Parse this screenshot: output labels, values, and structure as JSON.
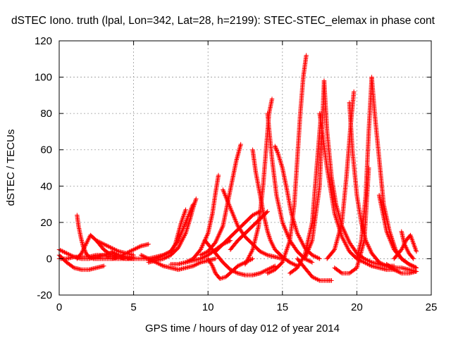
{
  "chart_data": {
    "type": "scatter",
    "title": "dSTEC Iono. truth (lpal, Lon=342, Lat=28, h=2199): STEC-STEC_elemax in phase cont",
    "xlabel": "GPS time / hours of day 012 of year 2014",
    "ylabel": "dSTEC  / TECUs",
    "xlim": [
      0,
      25
    ],
    "ylim": [
      -20,
      120
    ],
    "x_ticks": [
      0,
      5,
      10,
      15,
      20,
      25
    ],
    "y_ticks": [
      -20,
      0,
      20,
      40,
      60,
      80,
      100,
      120
    ],
    "grid": true,
    "legend": "none",
    "marker": "+",
    "color": "#ff0000",
    "series": [
      {
        "x": [
          0.0,
          0.5,
          1.0,
          1.5,
          2.0,
          2.5,
          3.0,
          3.5,
          4.0,
          4.5,
          5.0
        ],
        "y": [
          5,
          3,
          1,
          0,
          0,
          1,
          2,
          3,
          2,
          1,
          0
        ]
      },
      {
        "x": [
          0.0,
          0.5,
          1.0,
          1.5,
          2.0,
          2.5,
          3.0
        ],
        "y": [
          2,
          -2,
          -5,
          -6,
          -6,
          -5,
          -4
        ]
      },
      {
        "x": [
          0.0,
          0.5,
          1.0,
          1.5,
          2.0,
          2.5,
          3.0,
          3.5,
          4.0,
          4.5,
          5.0
        ],
        "y": [
          0,
          0,
          1,
          1,
          1,
          2,
          2,
          1,
          1,
          0,
          0
        ]
      },
      {
        "x": [
          1.2,
          1.3,
          1.45,
          1.6,
          1.8,
          2.0,
          2.3,
          2.6,
          3.0,
          3.5,
          4.0,
          4.5,
          5.0
        ],
        "y": [
          24,
          18,
          12,
          7,
          3,
          1,
          0,
          0,
          0,
          0,
          0,
          0,
          1
        ]
      },
      {
        "x": [
          1.2,
          1.5,
          1.8,
          2.1,
          2.5,
          3.0,
          3.5,
          4.0,
          4.5,
          5.0
        ],
        "y": [
          0,
          3,
          8,
          13,
          10,
          5,
          2,
          1,
          0,
          0
        ]
      },
      {
        "x": [
          2.5,
          3.0,
          3.5,
          4.0,
          4.5,
          5.0
        ],
        "y": [
          10,
          8,
          6,
          4,
          3,
          2
        ]
      },
      {
        "x": [
          3.5,
          4.0,
          4.5,
          5.0,
          5.5,
          6.0
        ],
        "y": [
          4,
          2,
          1,
          0,
          0,
          0
        ]
      },
      {
        "x": [
          3.5,
          4.0,
          4.5,
          5.0,
          5.5,
          6.0
        ],
        "y": [
          0,
          1,
          3,
          5,
          7,
          8
        ]
      },
      {
        "x": [
          5.5,
          6.0,
          6.5,
          7.0,
          7.5,
          8.0,
          8.5,
          9.0,
          9.5,
          10.0,
          10.5
        ],
        "y": [
          2,
          0,
          -2,
          -4,
          -5,
          -6,
          -5,
          -4,
          -2,
          -1,
          0
        ]
      },
      {
        "x": [
          6.0,
          6.5,
          7.0,
          7.5,
          7.8,
          8.0,
          8.2,
          8.5
        ],
        "y": [
          0,
          1,
          2,
          4,
          8,
          14,
          20,
          27
        ]
      },
      {
        "x": [
          6.0,
          6.5,
          7.0,
          7.5,
          8.0,
          8.3,
          8.6,
          9.0
        ],
        "y": [
          -1,
          0,
          2,
          4,
          10,
          16,
          22,
          30
        ]
      },
      {
        "x": [
          6.0,
          6.5,
          7.0,
          7.5,
          8.0,
          8.5,
          8.8,
          9.0,
          9.2
        ],
        "y": [
          -2,
          -1,
          0,
          2,
          6,
          14,
          22,
          28,
          33
        ]
      },
      {
        "x": [
          7.5,
          8.0,
          8.5,
          9.0,
          9.5,
          10.0,
          10.5,
          11.0,
          11.5
        ],
        "y": [
          -3,
          -3,
          -2,
          -1,
          0,
          2,
          5,
          8,
          10
        ]
      },
      {
        "x": [
          8.5,
          9.0,
          9.5,
          10.0,
          10.3,
          10.5,
          10.7
        ],
        "y": [
          -2,
          0,
          5,
          14,
          25,
          36,
          46
        ]
      },
      {
        "x": [
          9.5,
          10.0,
          10.5,
          11.0,
          11.3,
          11.6,
          11.9,
          12.2
        ],
        "y": [
          2,
          4,
          9,
          18,
          30,
          42,
          54,
          63
        ]
      },
      {
        "x": [
          9.8,
          10.2,
          10.6,
          11.0,
          11.5,
          12.0,
          12.5,
          13.0,
          13.5,
          14.0,
          14.5
        ],
        "y": [
          10,
          6,
          2,
          -2,
          -6,
          -8,
          -9,
          -9,
          -8,
          -6,
          -4
        ]
      },
      {
        "x": [
          10.0,
          10.3,
          10.5,
          10.8,
          11.2,
          11.6,
          12.0,
          12.5,
          13.0
        ],
        "y": [
          0,
          -4,
          -8,
          -11,
          -10,
          -7,
          -4,
          -2,
          0
        ]
      },
      {
        "x": [
          11.0,
          11.5,
          12.0,
          12.5,
          13.0,
          13.5,
          14.0,
          14.5,
          15.0
        ],
        "y": [
          38,
          28,
          18,
          12,
          8,
          4,
          2,
          1,
          0
        ]
      },
      {
        "x": [
          11.5,
          12.0,
          12.5,
          13.0,
          13.5,
          14.0
        ],
        "y": [
          5,
          10,
          14,
          18,
          22,
          26
        ]
      },
      {
        "x": [
          10.5,
          11.0,
          11.5,
          12.0,
          12.5,
          13.0,
          13.5
        ],
        "y": [
          4,
          8,
          12,
          16,
          20,
          24,
          26
        ]
      },
      {
        "x": [
          13.0,
          13.2,
          13.5,
          13.8,
          14.0,
          14.2,
          14.5,
          15.0,
          15.5,
          16.0
        ],
        "y": [
          60,
          48,
          35,
          22,
          15,
          10,
          5,
          1,
          -2,
          -4
        ]
      },
      {
        "x": [
          12.5,
          13.0,
          13.4,
          13.7,
          13.9,
          14.1,
          14.3
        ],
        "y": [
          -3,
          5,
          18,
          40,
          60,
          80,
          88
        ]
      },
      {
        "x": [
          14.0,
          14.3,
          14.6,
          15.0,
          15.5,
          16.0,
          16.5,
          17.0
        ],
        "y": [
          80,
          55,
          35,
          20,
          10,
          4,
          0,
          -2
        ]
      },
      {
        "x": [
          14.5,
          14.7,
          15.0,
          15.3,
          15.6,
          16.0,
          16.5,
          17.0,
          17.5
        ],
        "y": [
          62,
          58,
          50,
          38,
          25,
          14,
          6,
          2,
          0
        ]
      },
      {
        "x": [
          14.0,
          14.5,
          15.0,
          15.5,
          15.8,
          16.0,
          16.2,
          16.4,
          16.6
        ],
        "y": [
          -8,
          -6,
          -2,
          10,
          30,
          55,
          80,
          100,
          112
        ]
      },
      {
        "x": [
          16.5,
          17.0,
          17.5,
          17.8
        ],
        "y": [
          0,
          10,
          40,
          98
        ]
      },
      {
        "x": [
          17.8,
          18.0,
          18.3,
          18.6,
          19.0,
          19.5,
          20.0,
          20.5,
          21.0,
          21.5,
          22.0,
          22.5
        ],
        "y": [
          98,
          70,
          45,
          30,
          18,
          9,
          3,
          0,
          -2,
          -3,
          -4,
          -4
        ]
      },
      {
        "x": [
          15.5,
          16.0,
          16.5,
          17.0,
          17.3,
          17.6
        ],
        "y": [
          -8,
          -5,
          2,
          20,
          50,
          80
        ]
      },
      {
        "x": [
          17.5,
          18.0,
          18.5,
          19.0,
          19.5,
          20.0,
          20.5,
          21.0,
          21.5,
          22.0,
          22.5
        ],
        "y": [
          80,
          50,
          25,
          12,
          4,
          0,
          -2,
          -4,
          -5,
          -6,
          -6
        ]
      },
      {
        "x": [
          16.0,
          16.5,
          17.0,
          17.5,
          18.0,
          18.3
        ],
        "y": [
          0,
          -5,
          -10,
          -12,
          -12,
          -12
        ]
      },
      {
        "x": [
          18.0,
          18.5,
          19.0,
          19.3,
          19.6,
          19.8
        ],
        "y": [
          0,
          5,
          20,
          45,
          75,
          92
        ]
      },
      {
        "x": [
          19.5,
          19.7,
          20.0,
          20.3,
          20.6,
          21.0,
          21.5,
          22.0,
          22.5,
          23.0,
          23.5,
          24.0
        ],
        "y": [
          86,
          60,
          35,
          20,
          10,
          3,
          -2,
          -4,
          -5,
          -5,
          -6,
          -7
        ]
      },
      {
        "x": [
          20.0,
          20.3,
          20.6,
          20.8,
          21.0
        ],
        "y": [
          0,
          10,
          35,
          70,
          100
        ]
      },
      {
        "x": [
          21.0,
          21.2,
          21.5,
          21.8,
          22.2,
          22.6,
          23.0,
          23.5,
          24.0
        ],
        "y": [
          100,
          80,
          55,
          30,
          15,
          5,
          0,
          -3,
          -5
        ]
      },
      {
        "x": [
          18.5,
          19.0,
          19.5,
          20.0,
          20.5,
          20.8
        ],
        "y": [
          -5,
          -8,
          -8,
          -5,
          10,
          50
        ]
      },
      {
        "x": [
          21.5,
          22.0,
          22.5,
          23.0,
          23.5,
          24.0
        ],
        "y": [
          35,
          15,
          5,
          0,
          -3,
          -5
        ]
      },
      {
        "x": [
          22.0,
          22.5,
          23.0,
          23.5,
          24.0
        ],
        "y": [
          -3,
          -6,
          -8,
          -8,
          -7
        ]
      },
      {
        "x": [
          22.5,
          23.0,
          23.3,
          23.6,
          24.0
        ],
        "y": [
          0,
          5,
          10,
          13,
          4
        ]
      },
      {
        "x": [
          23.0,
          23.2,
          23.5,
          23.8
        ],
        "y": [
          15,
          8,
          3,
          0
        ]
      }
    ]
  }
}
